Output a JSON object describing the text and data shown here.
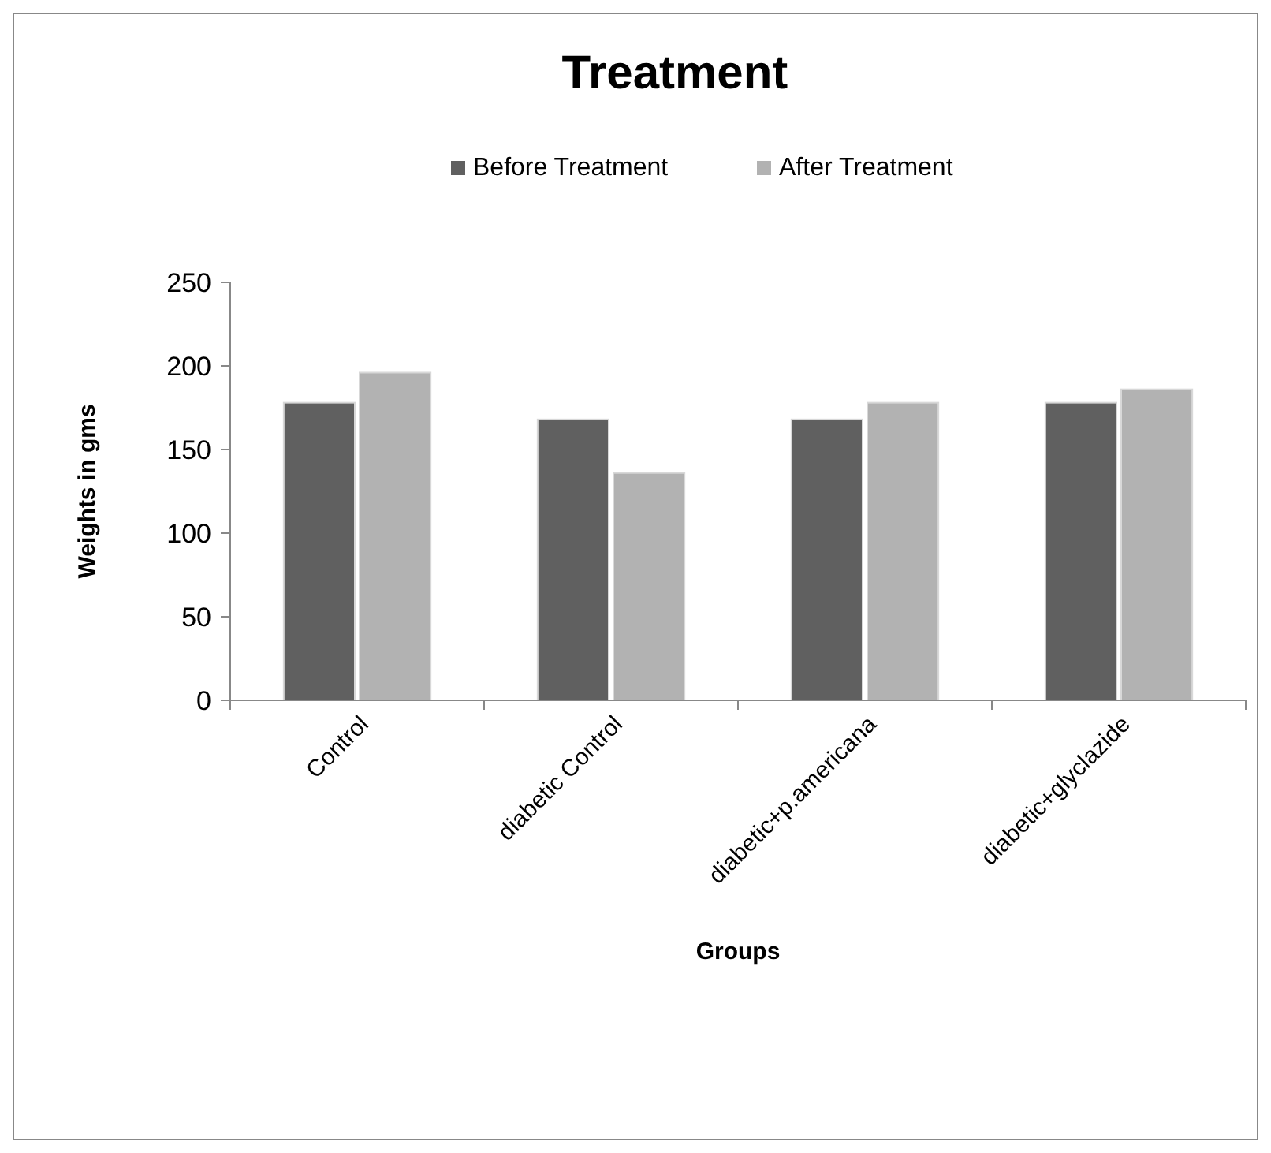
{
  "chart_data": {
    "type": "bar",
    "title": "Treatment",
    "xlabel": "Groups",
    "ylabel": "Weights in gms",
    "categories": [
      "Control",
      "diabetic Control",
      "diabetic+p.americana",
      "diabetic+glyclazide"
    ],
    "series": [
      {
        "name": "Before Treatment",
        "color": "#606060",
        "values": [
          178,
          168,
          168,
          178
        ]
      },
      {
        "name": "After Treatment",
        "color": "#b2b2b2",
        "values": [
          196,
          136,
          178,
          186
        ]
      }
    ],
    "ylim": [
      0,
      250
    ],
    "yticks": [
      0,
      50,
      100,
      150,
      200,
      250
    ],
    "grid": false,
    "legend": "top"
  }
}
